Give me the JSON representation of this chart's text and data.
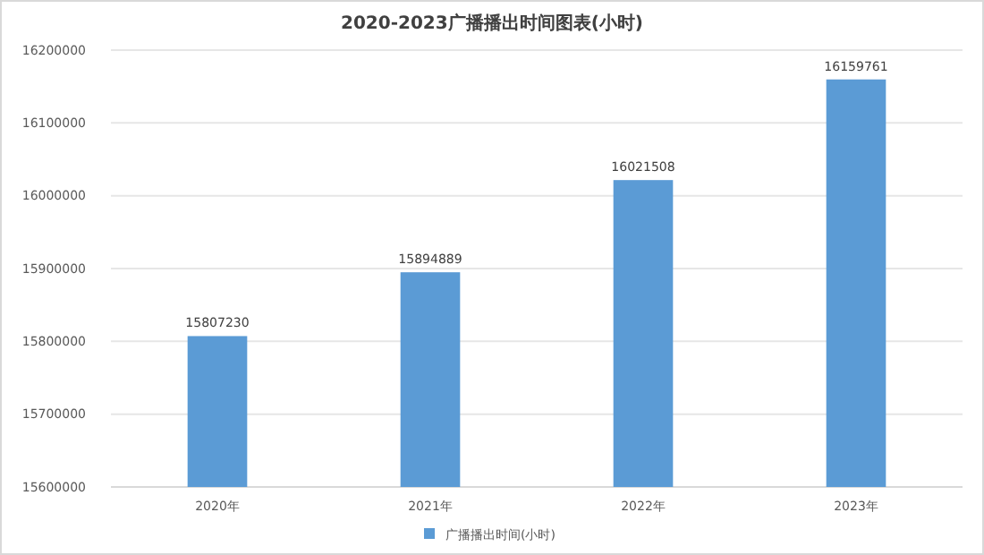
{
  "chart_data": {
    "type": "bar",
    "title": "2020-2023广播播出时间图表(小时)",
    "categories": [
      "2020年",
      "2021年",
      "2022年",
      "2023年"
    ],
    "series": [
      {
        "name": "广播播出时间(小时)",
        "color": "#5b9bd5",
        "values": [
          15807230,
          15894889,
          16021508,
          16159761
        ]
      }
    ],
    "ylim": [
      15600000,
      16200000
    ],
    "yticks": [
      15600000,
      15700000,
      15800000,
      15900000,
      16000000,
      16100000,
      16200000
    ],
    "grid": "y",
    "legend": "bottom",
    "data_labels": true
  }
}
